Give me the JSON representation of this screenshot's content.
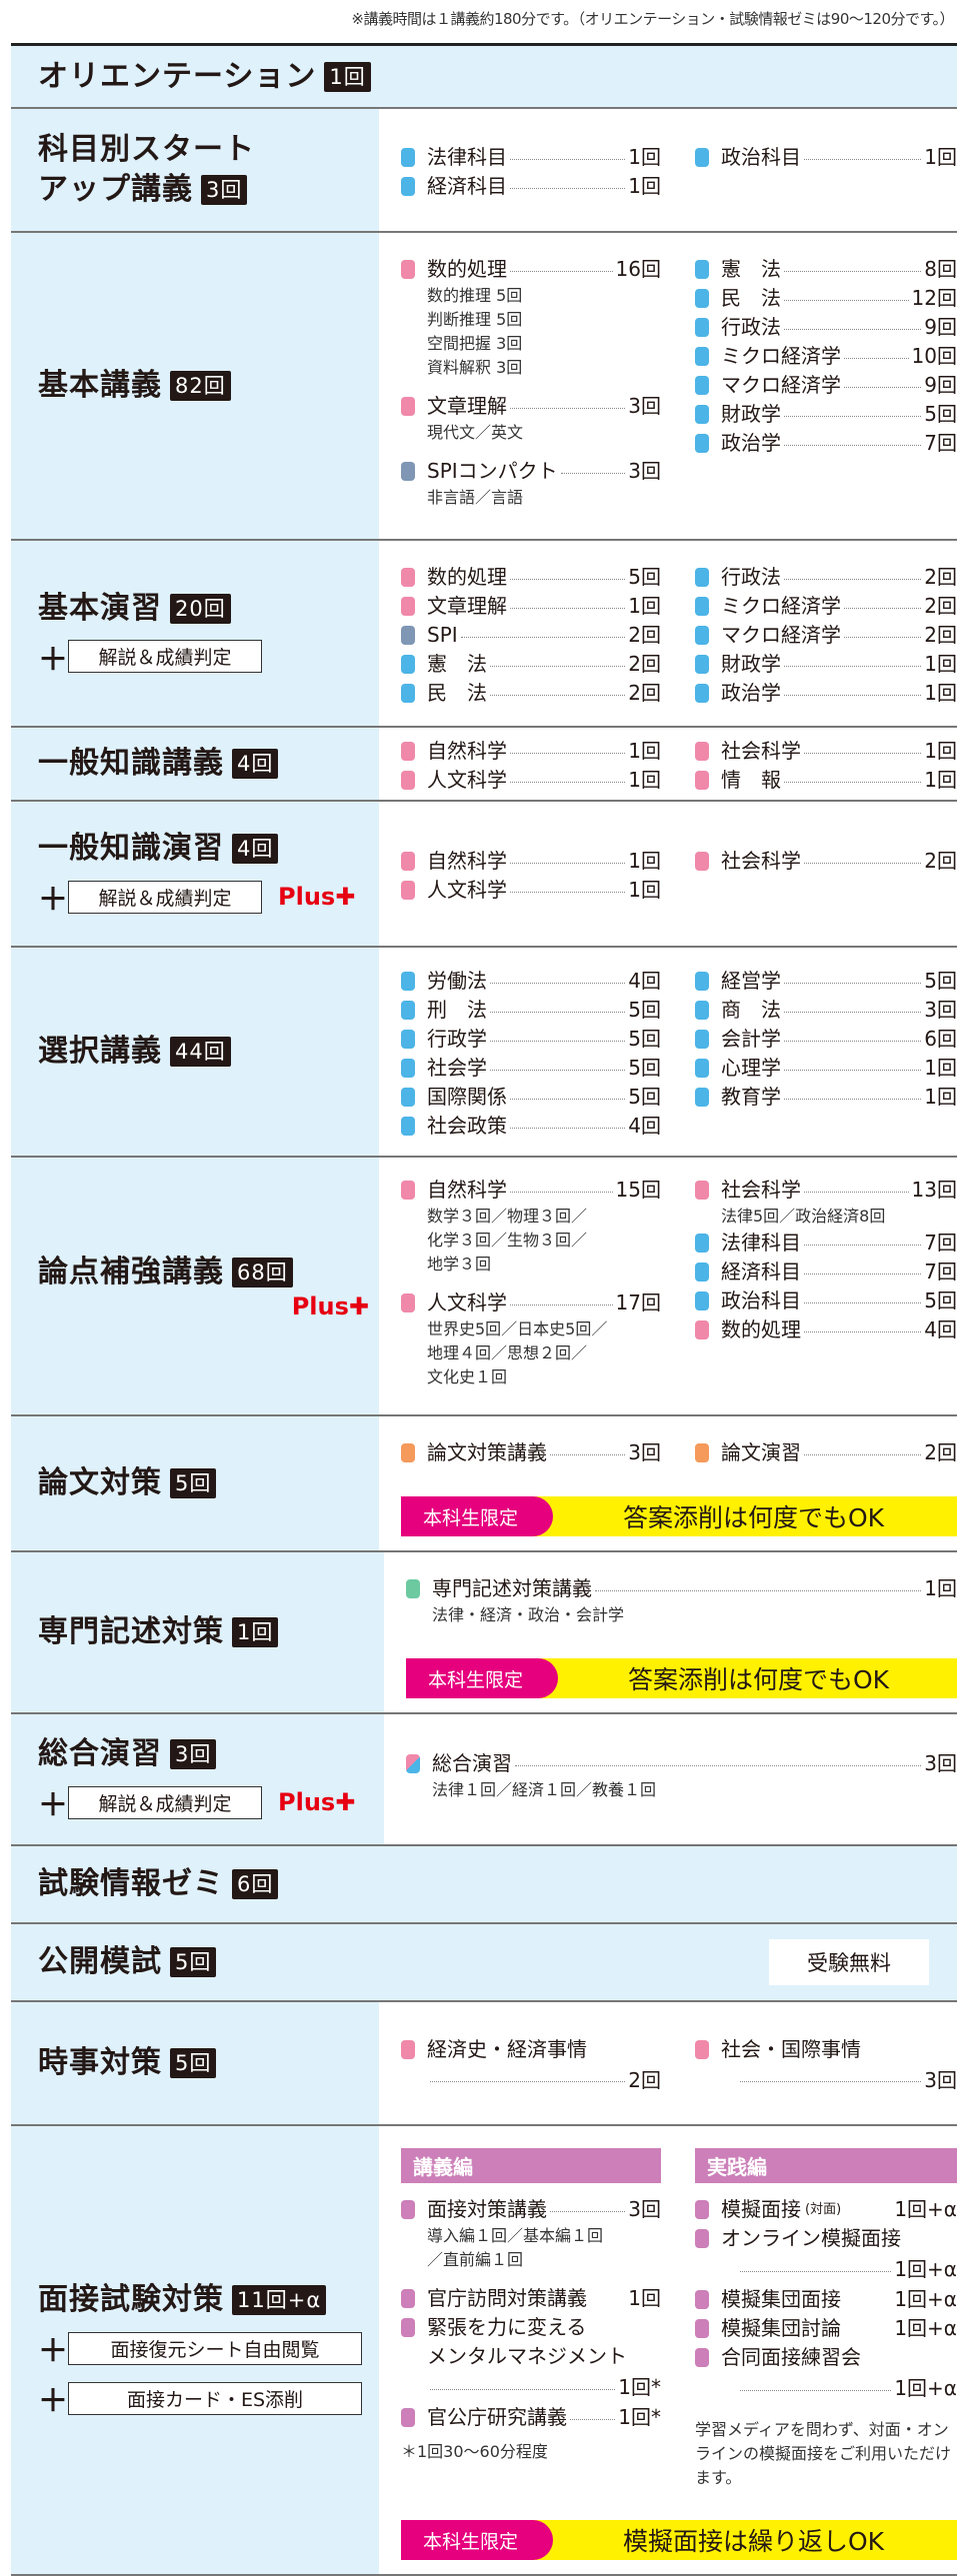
{
  "note": "※講義時間は１講義約180分です。（オリエンテーション・試験情報ゼミは90～120分です。）",
  "colors": {
    "blue": "#4cb4e7",
    "pink": "#f088aa",
    "slate": "#7f97b5",
    "orange": "#f59a5a",
    "green": "#6cc9a0",
    "mauve": "#cc7fb8",
    "plus_red": "#e60012",
    "tag_pink": "#e6007e",
    "banner_yellow": "#fff100",
    "bg_blue": "#dff1fb"
  },
  "plus_label": "Plus✚",
  "rows": [
    {
      "title": "オリエンテーション",
      "count": "1回",
      "full": true
    },
    {
      "title": "科目別スタート",
      "title2": "アップ講義",
      "count": "3回",
      "cols": [
        [
          {
            "name": "法律科目",
            "count": "1回",
            "color": "blue"
          },
          {
            "name": "経済科目",
            "count": "1回",
            "color": "blue"
          }
        ],
        [
          {
            "name": "政治科目",
            "count": "1回",
            "color": "blue"
          }
        ]
      ]
    },
    {
      "title": "基本講義",
      "count": "82回",
      "cols": [
        [
          {
            "name": "数的処理",
            "count": "16回",
            "color": "pink",
            "sub": [
              "数的推理 5回",
              "判断推理 5回",
              "空間把握 3回",
              "資料解釈 3回"
            ]
          },
          {
            "name": "文章理解",
            "count": "3回",
            "color": "pink",
            "sub": [
              "現代文／英文"
            ]
          },
          {
            "name": "SPIコンパクト",
            "count": "3回",
            "color": "slate",
            "sub": [
              "非言語／言語"
            ]
          }
        ],
        [
          {
            "name": "憲　法",
            "count": "8回",
            "color": "blue"
          },
          {
            "name": "民　法",
            "count": "12回",
            "color": "blue"
          },
          {
            "name": "行政法",
            "count": "9回",
            "color": "blue"
          },
          {
            "name": "ミクロ経済学",
            "count": "10回",
            "color": "blue"
          },
          {
            "name": "マクロ経済学",
            "count": "9回",
            "color": "blue"
          },
          {
            "name": "財政学",
            "count": "5回",
            "color": "blue"
          },
          {
            "name": "政治学",
            "count": "7回",
            "color": "blue"
          }
        ]
      ]
    },
    {
      "title": "基本演習",
      "count": "20回",
      "extras": [
        "解説＆成績判定"
      ],
      "cols": [
        [
          {
            "name": "数的処理",
            "count": "5回",
            "color": "pink"
          },
          {
            "name": "文章理解",
            "count": "1回",
            "color": "pink"
          },
          {
            "name": "SPI",
            "count": "2回",
            "color": "slate"
          },
          {
            "name": "憲　法",
            "count": "2回",
            "color": "blue"
          },
          {
            "name": "民　法",
            "count": "2回",
            "color": "blue"
          }
        ],
        [
          {
            "name": "行政法",
            "count": "2回",
            "color": "blue"
          },
          {
            "name": "ミクロ経済学",
            "count": "2回",
            "color": "blue"
          },
          {
            "name": "マクロ経済学",
            "count": "2回",
            "color": "blue"
          },
          {
            "name": "財政学",
            "count": "1回",
            "color": "blue"
          },
          {
            "name": "政治学",
            "count": "1回",
            "color": "blue"
          }
        ]
      ]
    },
    {
      "title": "一般知識講義",
      "count": "4回",
      "cols": [
        [
          {
            "name": "自然科学",
            "count": "1回",
            "color": "pink"
          },
          {
            "name": "人文科学",
            "count": "1回",
            "color": "pink"
          }
        ],
        [
          {
            "name": "社会科学",
            "count": "1回",
            "color": "pink"
          },
          {
            "name": "情　報",
            "count": "1回",
            "color": "pink"
          }
        ]
      ]
    },
    {
      "title": "一般知識演習",
      "count": "4回",
      "extras": [
        "解説＆成績判定"
      ],
      "plus": "inline",
      "cols": [
        [
          {
            "name": "自然科学",
            "count": "1回",
            "color": "pink"
          },
          {
            "name": "人文科学",
            "count": "1回",
            "color": "pink"
          }
        ],
        [
          {
            "name": "社会科学",
            "count": "2回",
            "color": "pink"
          }
        ]
      ]
    },
    {
      "title": "選択講義",
      "count": "44回",
      "cols": [
        [
          {
            "name": "労働法",
            "count": "4回",
            "color": "blue"
          },
          {
            "name": "刑　法",
            "count": "5回",
            "color": "blue"
          },
          {
            "name": "行政学",
            "count": "5回",
            "color": "blue"
          },
          {
            "name": "社会学",
            "count": "5回",
            "color": "blue"
          },
          {
            "name": "国際関係",
            "count": "5回",
            "color": "blue"
          },
          {
            "name": "社会政策",
            "count": "4回",
            "color": "blue"
          }
        ],
        [
          {
            "name": "経営学",
            "count": "5回",
            "color": "blue"
          },
          {
            "name": "商　法",
            "count": "3回",
            "color": "blue"
          },
          {
            "name": "会計学",
            "count": "6回",
            "color": "blue"
          },
          {
            "name": "心理学",
            "count": "1回",
            "color": "blue"
          },
          {
            "name": "教育学",
            "count": "1回",
            "color": "blue"
          }
        ]
      ]
    },
    {
      "title": "論点補強講義",
      "count": "68回",
      "plus": "below",
      "cols": [
        [
          {
            "name": "自然科学",
            "count": "15回",
            "color": "pink",
            "sub": [
              "数学３回／物理３回／",
              "化学３回／生物３回／",
              "地学３回"
            ]
          },
          {
            "name": "人文科学",
            "count": "17回",
            "color": "pink",
            "sub": [
              "世界史5回／日本史5回／",
              "地理４回／思想２回／",
              "文化史１回"
            ]
          }
        ],
        [
          {
            "name": "社会科学",
            "count": "13回",
            "color": "pink",
            "sub": [
              "法律5回／政治経済8回"
            ],
            "nogap": true
          },
          {
            "name": "法律科目",
            "count": "7回",
            "color": "blue"
          },
          {
            "name": "経済科目",
            "count": "7回",
            "color": "blue"
          },
          {
            "name": "政治科目",
            "count": "5回",
            "color": "blue"
          },
          {
            "name": "数的処理",
            "count": "4回",
            "color": "pink"
          }
        ]
      ],
      "nogap": true
    },
    {
      "title": "論文対策",
      "count": "5回",
      "cols": [
        [
          {
            "name": "論文対策講義",
            "count": "3回",
            "color": "orange"
          }
        ],
        [
          {
            "name": "論文演習",
            "count": "2回",
            "color": "orange"
          }
        ]
      ],
      "banner": {
        "tag": "本科生限定",
        "text": "答案添削は何度でもOK"
      }
    },
    {
      "title": "専門記述対策",
      "count": "1回",
      "wide": [
        {
          "name": "専門記述対策講義",
          "count": "1回",
          "color": "green",
          "sub": [
            "法律・経済・政治・会計学"
          ]
        }
      ],
      "banner": {
        "tag": "本科生限定",
        "text": "答案添削は何度でもOK"
      }
    },
    {
      "title": "総合演習",
      "count": "3回",
      "extras": [
        "解説＆成績判定"
      ],
      "plus": "inline",
      "wide": [
        {
          "name": "総合演習",
          "count": "3回",
          "color": "split",
          "sub": [
            "法律１回／経済１回／教養１回"
          ]
        }
      ]
    },
    {
      "title": "試験情報ゼミ",
      "count": "6回",
      "full": true
    },
    {
      "title": "公開模試",
      "count": "5回",
      "full": true,
      "free": "受験無料"
    },
    {
      "title": "時事対策",
      "count": "5回",
      "cols": [
        [
          {
            "name": "経済史・経済事情",
            "count": "2回",
            "color": "pink",
            "wrap": true
          }
        ],
        [
          {
            "name": "社会・国際事情",
            "count": "3回",
            "color": "pink",
            "wrap": true
          }
        ]
      ]
    },
    {
      "title": "面接試験対策",
      "count": "11回+α",
      "extras": [
        "面接復元シート自由閲覧",
        "面接カード・ES添削"
      ],
      "sections": [
        "講義編",
        "実践編"
      ],
      "cols": [
        [
          {
            "name": "面接対策講義",
            "count": "3回",
            "color": "mauve",
            "sub": [
              "導入編１回／基本編１回",
              "／直前編１回"
            ]
          },
          {
            "name": "官庁訪問対策講義",
            "count": "1回",
            "color": "mauve",
            "nodots": true
          },
          {
            "name": "緊張を力に変える",
            "name2": "メンタルマネジメント",
            "count": "1回*",
            "color": "mauve",
            "wrap": true
          },
          {
            "name": "官公庁研究講義",
            "count": "1回*",
            "color": "mauve"
          }
        ],
        [
          {
            "name": "模擬面接",
            "small": "(対面)",
            "count": "1回+α",
            "color": "mauve",
            "nodots": true,
            "nogap": true
          },
          {
            "name": "オンライン模擬面接",
            "count": "1回+α",
            "color": "mauve",
            "wrap": true,
            "nogap": true
          },
          {
            "name": "模擬集団面接",
            "count": "1回+α",
            "color": "mauve",
            "nodots": true,
            "nogap": true
          },
          {
            "name": "模擬集団討論",
            "count": "1回+α",
            "color": "mauve",
            "nodots": true,
            "nogap": true
          },
          {
            "name": "合同面接練習会",
            "count": "1回+α",
            "color": "mauve",
            "wrap": true
          }
        ]
      ],
      "notes": [
        "＊1回30～60分程度",
        "学習メディアを問わず、対面・オンラインの模擬面接をご利用いただけます。"
      ],
      "banner": {
        "tag": "本科生限定",
        "text": "模擬面接は繰り返しOK"
      }
    }
  ]
}
